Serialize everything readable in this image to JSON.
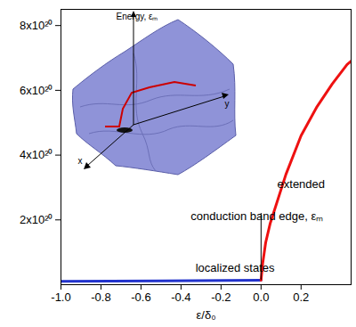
{
  "chart_data": {
    "type": "line",
    "x_label": "ε/δ₀",
    "xlim": [
      -1.0,
      0.45
    ],
    "xticks": [
      {
        "value": -1.0,
        "label": "-1.0"
      },
      -0.8,
      -0.6,
      -0.4,
      -0.2,
      {
        "value": 0.0,
        "label": "0.0"
      },
      0.2
    ],
    "ylim": [
      0,
      8.5e+20
    ],
    "yticks": [
      {
        "value": 2e+20,
        "label": "2x10²⁰"
      },
      {
        "value": 4e+20,
        "label": "4x10²⁰"
      },
      {
        "value": 6e+20,
        "label": "6x10²⁰"
      },
      {
        "value": 8e+20,
        "label": "8x10²⁰"
      }
    ],
    "series": [
      {
        "color": "#2233cc",
        "x": [
          -1.0,
          -0.5,
          0.0
        ],
        "values": [
          1e+19,
          1.2e+19,
          1.4e+19
        ]
      },
      {
        "color": "#ee1111",
        "x": [
          0.0,
          0.008,
          0.023,
          0.046,
          0.124,
          0.2,
          0.28,
          0.356,
          0.43,
          0.45
        ],
        "values": [
          1.4e+19,
          6.5e+19,
          1.3e+20,
          1.9e+20,
          3.4e+20,
          4.6e+20,
          5.5e+20,
          6.2e+20,
          6.8e+20,
          6.9e+20
        ]
      }
    ],
    "edge": {
      "x": 0.0,
      "y": [
        1.4e+19,
        2.2e+20
      ]
    },
    "annotations": [
      {
        "text": "localized states",
        "x": -0.13,
        "y": 5e+19
      },
      {
        "text": "conduction band edge, εₘ",
        "x": -0.02,
        "y": 2.1e+20
      },
      {
        "text": "extended",
        "x": 0.2,
        "y": 3.1e+20
      }
    ],
    "inset": {
      "z_label": "Energy, εₘ",
      "x_label": "x",
      "y_label": "y"
    }
  }
}
